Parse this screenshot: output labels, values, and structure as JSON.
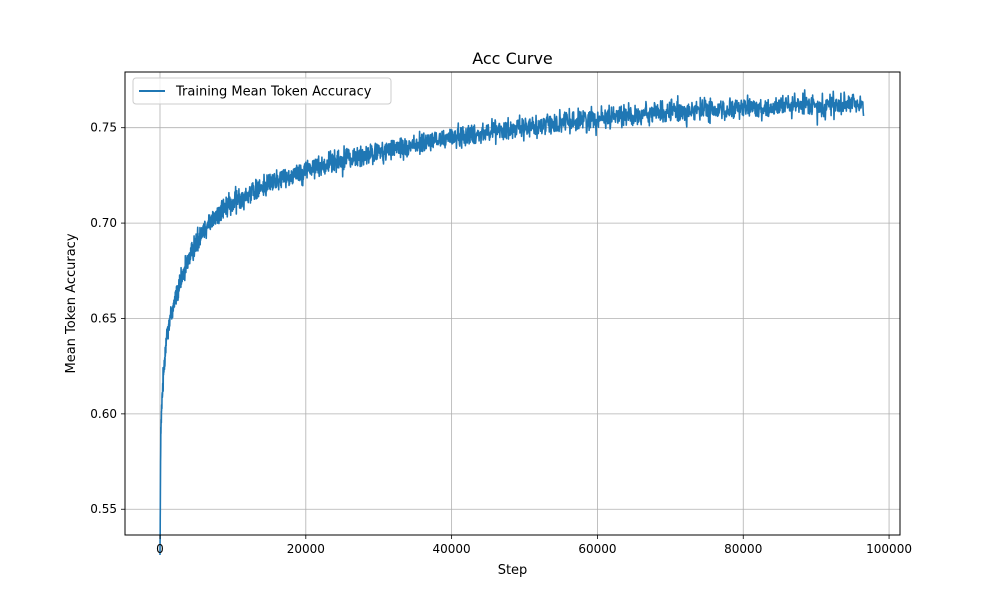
{
  "chart_data": {
    "type": "line",
    "title": "Acc Curve",
    "xlabel": "Step",
    "ylabel": "Mean Token Accuracy",
    "xlim": [
      -4800,
      101500
    ],
    "ylim": [
      0.5365,
      0.7792
    ],
    "xticks": [
      0,
      20000,
      40000,
      60000,
      80000,
      100000
    ],
    "yticks": [
      0.55,
      0.6,
      0.65,
      0.7,
      0.75
    ],
    "xtick_labels": [
      "0",
      "20000",
      "40000",
      "60000",
      "80000",
      "100000"
    ],
    "ytick_labels": [
      "0.55",
      "0.60",
      "0.65",
      "0.70",
      "0.75"
    ],
    "grid": true,
    "legend_position": "top-left",
    "series": [
      {
        "name": "Training Mean Token Accuracy",
        "color": "#1f77b4",
        "noise_amplitude": 0.0028,
        "x": [
          0,
          100,
          200,
          300,
          500,
          700,
          1000,
          1500,
          2000,
          3000,
          4000,
          5000,
          6000,
          8000,
          10000,
          12000,
          15000,
          18000,
          20000,
          25000,
          30000,
          35000,
          40000,
          45000,
          50000,
          55000,
          60000,
          65000,
          70000,
          75000,
          80000,
          85000,
          90000,
          95000,
          96500
        ],
        "y": [
          0.526,
          0.585,
          0.6,
          0.608,
          0.622,
          0.633,
          0.643,
          0.652,
          0.659,
          0.671,
          0.682,
          0.69,
          0.697,
          0.705,
          0.711,
          0.715,
          0.721,
          0.725,
          0.728,
          0.733,
          0.737,
          0.741,
          0.745,
          0.748,
          0.75,
          0.753,
          0.755,
          0.757,
          0.758,
          0.759,
          0.76,
          0.761,
          0.762,
          0.762,
          0.763
        ]
      }
    ]
  }
}
